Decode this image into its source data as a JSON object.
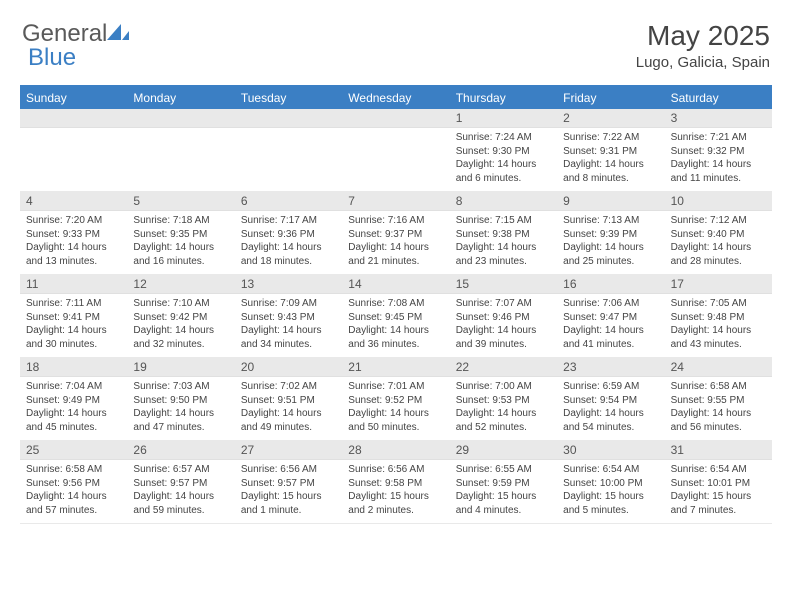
{
  "logo": {
    "text1": "General",
    "text2": "Blue"
  },
  "colors": {
    "header_bg": "#3b7fc4",
    "daynum_bg": "#e9e9e9",
    "text": "#444444",
    "logo_gray": "#5a5a5a"
  },
  "title": "May 2025",
  "location": "Lugo, Galicia, Spain",
  "weekdays": [
    "Sunday",
    "Monday",
    "Tuesday",
    "Wednesday",
    "Thursday",
    "Friday",
    "Saturday"
  ],
  "weeks": [
    [
      null,
      null,
      null,
      null,
      {
        "n": "1",
        "sr": "7:24 AM",
        "ss": "9:30 PM",
        "dl": "14 hours and 6 minutes."
      },
      {
        "n": "2",
        "sr": "7:22 AM",
        "ss": "9:31 PM",
        "dl": "14 hours and 8 minutes."
      },
      {
        "n": "3",
        "sr": "7:21 AM",
        "ss": "9:32 PM",
        "dl": "14 hours and 11 minutes."
      }
    ],
    [
      {
        "n": "4",
        "sr": "7:20 AM",
        "ss": "9:33 PM",
        "dl": "14 hours and 13 minutes."
      },
      {
        "n": "5",
        "sr": "7:18 AM",
        "ss": "9:35 PM",
        "dl": "14 hours and 16 minutes."
      },
      {
        "n": "6",
        "sr": "7:17 AM",
        "ss": "9:36 PM",
        "dl": "14 hours and 18 minutes."
      },
      {
        "n": "7",
        "sr": "7:16 AM",
        "ss": "9:37 PM",
        "dl": "14 hours and 21 minutes."
      },
      {
        "n": "8",
        "sr": "7:15 AM",
        "ss": "9:38 PM",
        "dl": "14 hours and 23 minutes."
      },
      {
        "n": "9",
        "sr": "7:13 AM",
        "ss": "9:39 PM",
        "dl": "14 hours and 25 minutes."
      },
      {
        "n": "10",
        "sr": "7:12 AM",
        "ss": "9:40 PM",
        "dl": "14 hours and 28 minutes."
      }
    ],
    [
      {
        "n": "11",
        "sr": "7:11 AM",
        "ss": "9:41 PM",
        "dl": "14 hours and 30 minutes."
      },
      {
        "n": "12",
        "sr": "7:10 AM",
        "ss": "9:42 PM",
        "dl": "14 hours and 32 minutes."
      },
      {
        "n": "13",
        "sr": "7:09 AM",
        "ss": "9:43 PM",
        "dl": "14 hours and 34 minutes."
      },
      {
        "n": "14",
        "sr": "7:08 AM",
        "ss": "9:45 PM",
        "dl": "14 hours and 36 minutes."
      },
      {
        "n": "15",
        "sr": "7:07 AM",
        "ss": "9:46 PM",
        "dl": "14 hours and 39 minutes."
      },
      {
        "n": "16",
        "sr": "7:06 AM",
        "ss": "9:47 PM",
        "dl": "14 hours and 41 minutes."
      },
      {
        "n": "17",
        "sr": "7:05 AM",
        "ss": "9:48 PM",
        "dl": "14 hours and 43 minutes."
      }
    ],
    [
      {
        "n": "18",
        "sr": "7:04 AM",
        "ss": "9:49 PM",
        "dl": "14 hours and 45 minutes."
      },
      {
        "n": "19",
        "sr": "7:03 AM",
        "ss": "9:50 PM",
        "dl": "14 hours and 47 minutes."
      },
      {
        "n": "20",
        "sr": "7:02 AM",
        "ss": "9:51 PM",
        "dl": "14 hours and 49 minutes."
      },
      {
        "n": "21",
        "sr": "7:01 AM",
        "ss": "9:52 PM",
        "dl": "14 hours and 50 minutes."
      },
      {
        "n": "22",
        "sr": "7:00 AM",
        "ss": "9:53 PM",
        "dl": "14 hours and 52 minutes."
      },
      {
        "n": "23",
        "sr": "6:59 AM",
        "ss": "9:54 PM",
        "dl": "14 hours and 54 minutes."
      },
      {
        "n": "24",
        "sr": "6:58 AM",
        "ss": "9:55 PM",
        "dl": "14 hours and 56 minutes."
      }
    ],
    [
      {
        "n": "25",
        "sr": "6:58 AM",
        "ss": "9:56 PM",
        "dl": "14 hours and 57 minutes."
      },
      {
        "n": "26",
        "sr": "6:57 AM",
        "ss": "9:57 PM",
        "dl": "14 hours and 59 minutes."
      },
      {
        "n": "27",
        "sr": "6:56 AM",
        "ss": "9:57 PM",
        "dl": "15 hours and 1 minute."
      },
      {
        "n": "28",
        "sr": "6:56 AM",
        "ss": "9:58 PM",
        "dl": "15 hours and 2 minutes."
      },
      {
        "n": "29",
        "sr": "6:55 AM",
        "ss": "9:59 PM",
        "dl": "15 hours and 4 minutes."
      },
      {
        "n": "30",
        "sr": "6:54 AM",
        "ss": "10:00 PM",
        "dl": "15 hours and 5 minutes."
      },
      {
        "n": "31",
        "sr": "6:54 AM",
        "ss": "10:01 PM",
        "dl": "15 hours and 7 minutes."
      }
    ]
  ],
  "labels": {
    "sunrise": "Sunrise: ",
    "sunset": "Sunset: ",
    "daylight": "Daylight: "
  }
}
